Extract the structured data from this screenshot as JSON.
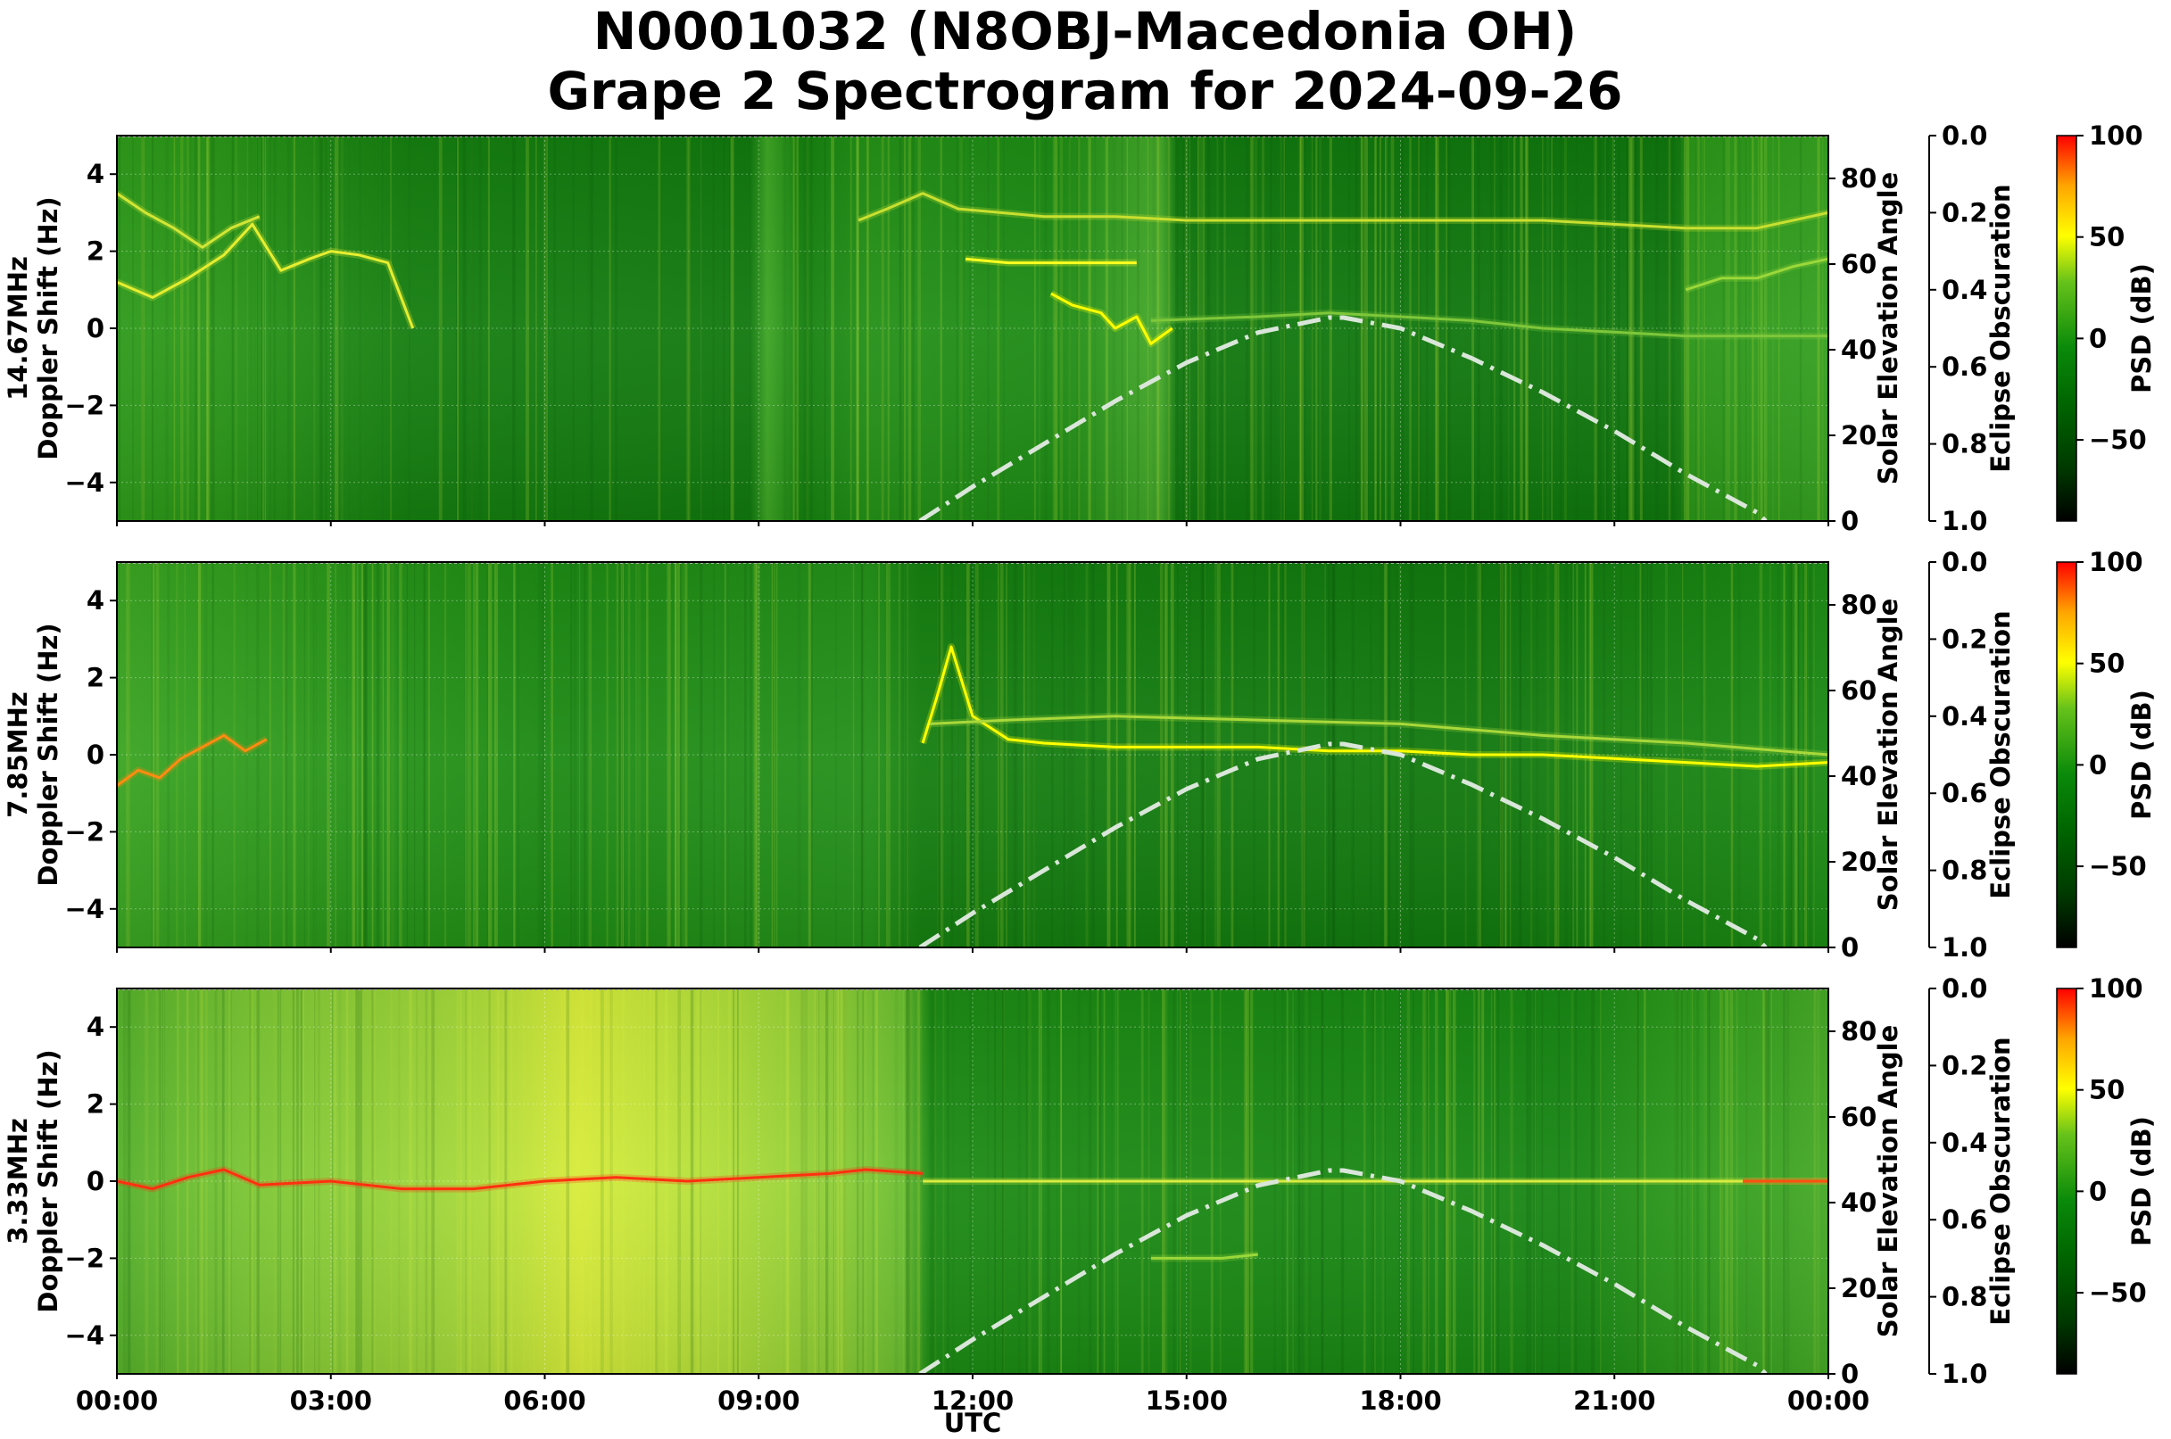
{
  "chart_data": {
    "type": "heatmap",
    "title_line1": "N0001032 (N8OBJ-Macedonia OH)",
    "title_line2": "Grape 2 Spectrogram for 2024-09-26",
    "xlabel": "UTC",
    "x_ticks": [
      "00:00",
      "03:00",
      "06:00",
      "09:00",
      "12:00",
      "15:00",
      "18:00",
      "21:00",
      "00:00"
    ],
    "xlim_hours": [
      0,
      24
    ],
    "ylabel_line2": "Doppler Shift (Hz)",
    "ylim": [
      -5,
      5
    ],
    "y_ticks": [
      "4",
      "2",
      "0",
      "−2",
      "−4"
    ],
    "y_tick_values": [
      4,
      2,
      0,
      -2,
      -4
    ],
    "right_axis_label": "Solar Elevation Angle",
    "right_axis_ylim": [
      0,
      90
    ],
    "right_axis_ticks": [
      "0",
      "20",
      "40",
      "60",
      "80"
    ],
    "right_axis_tick_values": [
      0,
      20,
      40,
      60,
      80
    ],
    "eclipse_axis_label": "Eclipse Obscuration",
    "eclipse_axis_ylim": [
      1.0,
      0.0
    ],
    "eclipse_axis_ticks": [
      "0.0",
      "0.2",
      "0.4",
      "0.6",
      "0.8",
      "1.0"
    ],
    "eclipse_axis_tick_values": [
      0.0,
      0.2,
      0.4,
      0.6,
      0.8,
      1.0
    ],
    "colorbar_label": "PSD (dB)",
    "colorbar_range": [
      -90,
      100
    ],
    "colorbar_ticks": [
      "100",
      "50",
      "0",
      "−50"
    ],
    "colorbar_tick_values": [
      100,
      50,
      0,
      -50
    ],
    "colormap": [
      "#000000",
      "#006400",
      "#008000",
      "#33b000",
      "#ffff00",
      "#ffa500",
      "#ff0000"
    ],
    "grid": true,
    "solar_elevation_series": {
      "style": "dash-dot",
      "color": "#d9e6d9",
      "x_hours": [
        11.26,
        12,
        13,
        14,
        15,
        16,
        17,
        17.2,
        18,
        19,
        20,
        21,
        22,
        23,
        23.12
      ],
      "elevation_deg": [
        0,
        8,
        18,
        28,
        37,
        44,
        47.5,
        47.5,
        45,
        38,
        30,
        21,
        11,
        2,
        0
      ]
    },
    "eclipse_obscuration_series": {
      "x_hours": [
        0,
        24
      ],
      "values": [
        0,
        0
      ],
      "style": "dotted",
      "color": "#aaaaaa"
    },
    "panels": [
      {
        "frequency_label": "14.67MHz",
        "base_color": "#0a7a0a",
        "features": [
          {
            "x_hours": [
              0.0,
              0.5,
              1.0,
              1.5,
              1.9,
              2.3,
              2.7,
              3.0,
              3.4,
              3.8,
              4.15
            ],
            "y_hz": [
              1.2,
              0.8,
              1.3,
              1.9,
              2.7,
              1.5,
              1.8,
              2.0,
              1.9,
              1.7,
              0.0
            ],
            "color": "#e6ee30"
          },
          {
            "x_hours": [
              0.0,
              0.4,
              0.8,
              1.2,
              1.6,
              2.0
            ],
            "y_hz": [
              3.5,
              3.0,
              2.6,
              2.1,
              2.6,
              2.9
            ],
            "color": "#d2e635"
          },
          {
            "x_hours": [
              10.4,
              10.8,
              11.3,
              11.8,
              12.4,
              13.0,
              14.0,
              15.0,
              16.0,
              17.0,
              18.0,
              19.0,
              20.0,
              21.0,
              22.0,
              23.0,
              24.0
            ],
            "y_hz": [
              2.8,
              3.1,
              3.5,
              3.1,
              3.0,
              2.9,
              2.9,
              2.8,
              2.8,
              2.8,
              2.8,
              2.8,
              2.8,
              2.7,
              2.6,
              2.6,
              3.0
            ],
            "color": "#c8e030"
          },
          {
            "x_hours": [
              11.9,
              12.5,
              13.0,
              13.5,
              14.0,
              14.3
            ],
            "y_hz": [
              1.8,
              1.7,
              1.7,
              1.7,
              1.7,
              1.7
            ],
            "color": "#ffff20"
          },
          {
            "x_hours": [
              13.1,
              13.4,
              13.8,
              14.0,
              14.3,
              14.5,
              14.8
            ],
            "y_hz": [
              0.9,
              0.6,
              0.4,
              0.0,
              0.3,
              -0.4,
              0.0
            ],
            "color": "#ffff00"
          },
          {
            "x_hours": [
              14.5,
              16.0,
              17.0,
              18.0,
              19.0,
              20.0,
              21.0,
              22.0,
              23.0,
              24.0
            ],
            "y_hz": [
              0.2,
              0.3,
              0.4,
              0.3,
              0.2,
              0.0,
              -0.1,
              -0.2,
              -0.2,
              -0.2
            ],
            "color": "#7ec73a"
          },
          {
            "x_hours": [
              22.0,
              22.5,
              23.0,
              23.5,
              24.0
            ],
            "y_hz": [
              1.0,
              1.3,
              1.3,
              1.6,
              1.8
            ],
            "color": "#9ad83a"
          }
        ]
      },
      {
        "frequency_label": "7.85MHz",
        "base_color": "#0a7a0a",
        "features": [
          {
            "x_hours": [
              0.0,
              0.3,
              0.6,
              0.9,
              1.2,
              1.5,
              1.8,
              2.1
            ],
            "y_hz": [
              -0.8,
              -0.4,
              -0.6,
              -0.1,
              0.2,
              0.5,
              0.1,
              0.4
            ],
            "color": "#ff8c10"
          },
          {
            "x_hours": [
              11.3,
              11.5,
              11.7,
              12.0,
              12.5,
              13.0,
              14.0,
              15.0,
              16.0,
              17.0,
              18.0,
              19.0,
              20.0,
              21.0,
              22.0,
              23.0,
              24.0
            ],
            "y_hz": [
              0.3,
              1.5,
              2.8,
              1.0,
              0.4,
              0.3,
              0.2,
              0.2,
              0.2,
              0.1,
              0.1,
              0.0,
              0.0,
              -0.1,
              -0.2,
              -0.3,
              -0.2
            ],
            "color": "#ffff00"
          },
          {
            "x_hours": [
              11.4,
              12.5,
              14.0,
              16.0,
              18.0,
              20.0,
              22.0,
              24.0
            ],
            "y_hz": [
              0.8,
              0.9,
              1.0,
              0.9,
              0.8,
              0.5,
              0.3,
              0.0
            ],
            "color": "#a8d83a"
          }
        ]
      },
      {
        "frequency_label": "3.33MHz",
        "base_color": "#1a8a12",
        "features": [
          {
            "x_hours": [
              0.0,
              0.5,
              1.0,
              1.5,
              2.0,
              3.0,
              4.0,
              5.0,
              6.0,
              7.0,
              8.0,
              9.0,
              10.0,
              10.5,
              11.3
            ],
            "y_hz": [
              0.0,
              -0.2,
              0.1,
              0.3,
              -0.1,
              0.0,
              -0.2,
              -0.2,
              0.0,
              0.1,
              0.0,
              0.1,
              0.2,
              0.3,
              0.2
            ],
            "color": "#ff3010"
          },
          {
            "x_hours": [
              11.3,
              13.0,
              15.0,
              17.0,
              19.0,
              21.0,
              23.0,
              24.0
            ],
            "y_hz": [
              0.0,
              0.0,
              0.0,
              0.0,
              0.0,
              0.0,
              0.0,
              0.0
            ],
            "color": "#d8ec40"
          },
          {
            "x_hours": [
              22.8,
              23.3,
              23.7,
              24.0
            ],
            "y_hz": [
              0.0,
              0.0,
              0.0,
              0.0
            ],
            "color": "#ff5010"
          },
          {
            "x_hours": [
              14.5,
              15.0,
              15.5,
              16.0
            ],
            "y_hz": [
              -2.0,
              -2.0,
              -2.0,
              -1.9
            ],
            "color": "#9ad83a"
          }
        ]
      }
    ]
  }
}
